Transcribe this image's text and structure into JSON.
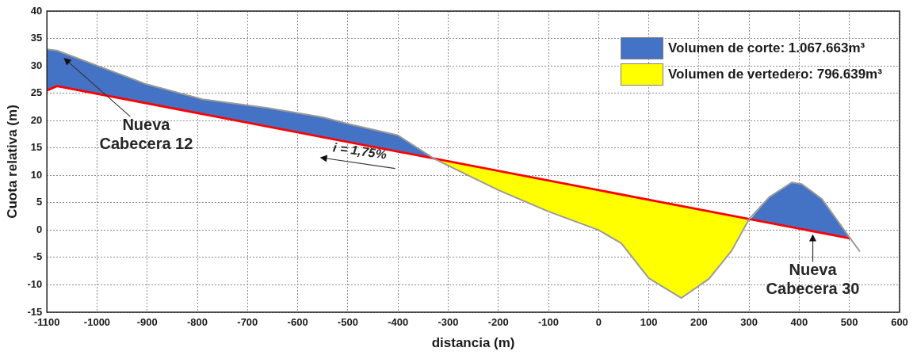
{
  "chart_data": {
    "type": "area",
    "xlabel": "distancia (m)",
    "ylabel": "Cuota relativa (m)",
    "xlim": [
      -1100,
      600
    ],
    "xticks": [
      -1100,
      -1000,
      -900,
      -800,
      -700,
      -600,
      -500,
      -400,
      -300,
      -200,
      -100,
      0,
      100,
      200,
      300,
      400,
      500,
      600
    ],
    "ylim": [
      -15,
      40
    ],
    "yticks": [
      -15,
      -10,
      -5,
      0,
      5,
      10,
      15,
      20,
      25,
      30,
      35,
      40
    ],
    "grid": true,
    "legend": "top right",
    "series": [
      {
        "name": "Volumen de corte: 1.067.663m³",
        "color": "#4472c4",
        "x": [
          -1100,
          -1080,
          -900,
          -790,
          -660,
          -550,
          -500,
          -400,
          -327,
          -400,
          -500,
          -550,
          -660,
          -790,
          -900,
          -1080,
          -1100,
          null,
          305,
          340,
          385,
          405,
          445,
          500,
          445,
          405,
          385,
          340,
          305
        ],
        "values": [
          33,
          32.8,
          26.6,
          23.9,
          22.3,
          20.6,
          19.4,
          17.3,
          13,
          14.3,
          16.1,
          17,
          18.9,
          21.2,
          23.1,
          26.3,
          25.5,
          null,
          2.2,
          6,
          8.7,
          8.4,
          5.7,
          -1.3,
          -0.5,
          0.2,
          0.5,
          1.3,
          1.9
        ]
      },
      {
        "name": "Volumen de vertedero: 796.639m³",
        "color": "#ffff00",
        "x": [
          -327,
          -200,
          -100,
          0,
          45,
          100,
          165,
          220,
          265,
          300,
          265,
          220,
          165,
          100,
          45,
          0,
          -100,
          -200
        ],
        "values": [
          13,
          10.8,
          9.1,
          7.3,
          6.5,
          5.5,
          4.4,
          3.4,
          2.6,
          2,
          -3.8,
          -8.9,
          -12.4,
          -8.8,
          -2.4,
          0,
          3.4,
          7.3
        ]
      },
      {
        "type": "line",
        "color": "#9a9a9a",
        "x": [
          -1100,
          -1080,
          -900,
          -790,
          -660,
          -550,
          -500,
          -400,
          -327,
          -200,
          -100,
          0,
          45,
          100,
          165,
          220,
          265,
          300,
          340,
          385,
          405,
          445,
          500,
          520
        ],
        "values": [
          33,
          32.8,
          26.6,
          23.9,
          22.3,
          20.6,
          19.4,
          17.3,
          13,
          7.3,
          3.4,
          0,
          -2.4,
          -8.8,
          -12.4,
          -8.9,
          -3.8,
          2,
          6,
          8.7,
          8.4,
          5.7,
          -1.3,
          -3.8
        ]
      },
      {
        "type": "line",
        "color": "#ff0000",
        "x": [
          -1100,
          -1080,
          500
        ],
        "values": [
          25.5,
          26.3,
          -1.5
        ]
      }
    ],
    "annotations": [
      "Nueva Cabecera 12",
      {
        "text": "Nueva Cabecera 30",
        "x": 427,
        "y": -0.3
      },
      "i = 1,75%"
    ]
  }
}
